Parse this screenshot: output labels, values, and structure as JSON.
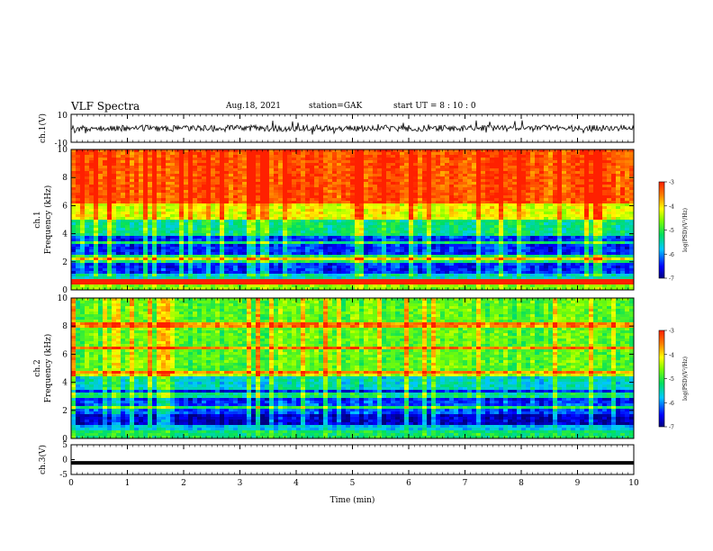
{
  "header": {
    "title": "VLF Spectra",
    "date": "Aug.18, 2021",
    "station": "station=GAK",
    "start": "start  UT =   8 : 10 : 0"
  },
  "chart_data": [
    {
      "type": "line",
      "panel": "ch1-waveform",
      "ylabel": "ch.1(V)",
      "ylim": [
        -10,
        10
      ],
      "yticks": [
        "10",
        "-10"
      ],
      "xlim": [
        0,
        10
      ],
      "note": "noisy waveform around 0 V"
    },
    {
      "type": "heatmap",
      "panel": "ch1-spectrogram",
      "ylabel": "ch.1\nFrequency (kHz)",
      "ylabel_lines": [
        "ch.1",
        "Frequency  (kHz)"
      ],
      "ylim": [
        0,
        10
      ],
      "yticks": [
        "0",
        "2",
        "4",
        "6",
        "8",
        "10"
      ],
      "xlim": [
        0,
        10
      ],
      "colorbar": {
        "label": "log(PSD)(V²/Hz)",
        "range": [
          -7,
          -3
        ],
        "ticks": [
          "-3",
          "-4",
          "-5",
          "-6",
          "-7"
        ]
      },
      "bands": [
        {
          "from": 0.0,
          "to": 0.35,
          "level": -4.6
        },
        {
          "from": 0.35,
          "to": 0.75,
          "level": -3.5
        },
        {
          "from": 0.75,
          "to": 1.2,
          "level": -5.6
        },
        {
          "from": 1.2,
          "to": 3.8,
          "level": -6.4
        },
        {
          "from": 3.8,
          "to": 5.0,
          "level": -5.3
        },
        {
          "from": 5.0,
          "to": 6.2,
          "level": -4.2
        },
        {
          "from": 6.2,
          "to": 10.0,
          "level": -3.3
        }
      ],
      "lines_khz": [
        2.1,
        2.3,
        3.3,
        0.6
      ]
    },
    {
      "type": "heatmap",
      "panel": "ch2-spectrogram",
      "ylabel_lines": [
        "ch.2",
        "Frequency  (kHz)"
      ],
      "ylim": [
        0,
        10
      ],
      "yticks": [
        "0",
        "2",
        "4",
        "6",
        "8",
        "10"
      ],
      "xlim": [
        0,
        10
      ],
      "colorbar": {
        "label": "log(PSD)(V²/Hz)",
        "range": [
          -7,
          -3
        ],
        "ticks": [
          "-3",
          "-4",
          "-5",
          "-6",
          "-7"
        ]
      },
      "bands": [
        {
          "from": 0.0,
          "to": 0.6,
          "level": -5.2
        },
        {
          "from": 0.6,
          "to": 1.0,
          "level": -5.8
        },
        {
          "from": 1.0,
          "to": 1.8,
          "level": -6.8
        },
        {
          "from": 1.8,
          "to": 2.6,
          "level": -6.3
        },
        {
          "from": 2.6,
          "to": 3.4,
          "level": -6.5
        },
        {
          "from": 3.4,
          "to": 4.6,
          "level": -5.6
        },
        {
          "from": 4.6,
          "to": 10.0,
          "level": -4.8
        }
      ],
      "lines_khz": [
        4.6,
        3.1,
        2.2,
        6.4,
        8.1
      ]
    },
    {
      "type": "line",
      "panel": "ch3-waveform",
      "ylabel": "ch.3(V)",
      "ylim": [
        -5,
        5
      ],
      "yticks": [
        "5",
        "0",
        "-5"
      ],
      "xlim": [
        0,
        10
      ],
      "value": -1.1
    }
  ],
  "x_axis": {
    "label": "Time  (min)",
    "ticks": [
      "0",
      "1",
      "2",
      "3",
      "4",
      "5",
      "6",
      "7",
      "8",
      "9",
      "10"
    ]
  }
}
